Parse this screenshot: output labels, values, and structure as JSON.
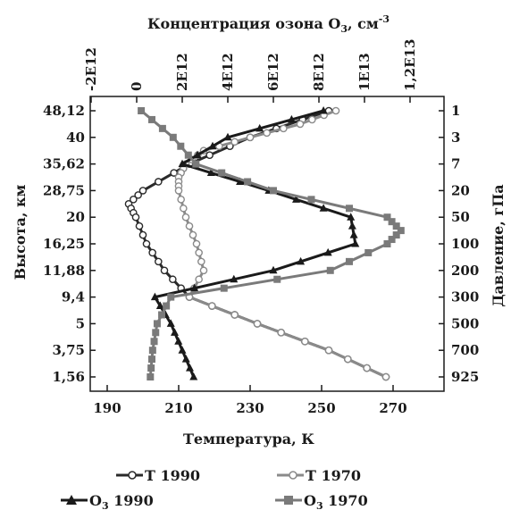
{
  "chart_data": {
    "type": "line",
    "top_axis": {
      "label_main": "Концентрация озона O",
      "label_sub": "3",
      "label_unit": ", см",
      "label_sup": "-3",
      "ticks": [
        "-2E12",
        "0",
        "2E12",
        "4E12",
        "6E12",
        "8E12",
        "1E13",
        "1,2E13"
      ],
      "tick_values": [
        -2000000000000.0,
        0,
        2000000000000.0,
        4000000000000.0,
        6000000000000.0,
        8000000000000.0,
        10000000000000.0,
        12000000000000.0
      ]
    },
    "bottom_axis": {
      "label": "Температура, К",
      "ticks": [
        "190",
        "210",
        "230",
        "250",
        "270"
      ],
      "tick_values": [
        190,
        210,
        230,
        250,
        270
      ]
    },
    "left_axis": {
      "label": "Высота, км",
      "ticks": [
        "48,12",
        "40",
        "35,62",
        "28,75",
        "20",
        "16,25",
        "11,88",
        "9,4",
        "5",
        "3,75",
        "1,56"
      ]
    },
    "right_axis": {
      "label": "Давление, гПа",
      "ticks": [
        "1",
        "3",
        "7",
        "20",
        "50",
        "100",
        "200",
        "300",
        "500",
        "700",
        "925"
      ]
    },
    "series": [
      {
        "name": "T 1990",
        "axis": "temperature",
        "color": "#2a2a2a",
        "marker": "open-circle",
        "levels": [
          0,
          1,
          2,
          3,
          3.5,
          4,
          5,
          6,
          7,
          8,
          9,
          10
        ],
        "values": [
          252,
          230,
          213,
          200,
          196,
          198,
          201,
          206,
          213,
          232,
          252,
          268
        ]
      },
      {
        "name": "T 1970",
        "axis": "temperature",
        "color": "#8a8a8a",
        "marker": "open-circle",
        "levels": [
          0,
          0.5,
          1,
          1.5,
          2,
          2.5,
          3,
          4,
          5,
          6,
          7,
          8,
          9,
          10
        ],
        "values": [
          254,
          244,
          230,
          217,
          212,
          210,
          210,
          212,
          215,
          217,
          213,
          232,
          252,
          268
        ]
      },
      {
        "name": "O3 1990",
        "axis": "ozone",
        "color": "#1a1a1a",
        "marker": "filled-triangle",
        "levels": [
          0,
          1,
          2,
          3,
          4,
          5,
          6,
          7,
          8,
          9,
          10
        ],
        "values": [
          8200000000000.0,
          4000000000000.0,
          2000000000000.0,
          5800000000000.0,
          9400000000000.0,
          9600000000000.0,
          6000000000000.0,
          800000000000.0,
          1500000000000.0,
          2000000000000.0,
          2500000000000.0
        ]
      },
      {
        "name": "O3 1970",
        "axis": "ozone",
        "color": "#7a7a7a",
        "marker": "filled-square",
        "levels": [
          0,
          1,
          2,
          3,
          4,
          4.5,
          5,
          6,
          7,
          8,
          9,
          10
        ],
        "values": [
          200000000000.0,
          1600000000000.0,
          2600000000000.0,
          6000000000000.0,
          11000000000000.0,
          11600000000000.0,
          11000000000000.0,
          8500000000000.0,
          1500000000000.0,
          900000000000.0,
          700000000000.0,
          600000000000.0
        ]
      }
    ],
    "legend_labels": [
      {
        "main": "T 1990",
        "sub": ""
      },
      {
        "main": "T 1970",
        "sub": ""
      },
      {
        "main": "O",
        "sub": "3",
        "rest": " 1990"
      },
      {
        "main": "O",
        "sub": "3",
        "rest": " 1970"
      }
    ],
    "grid": false,
    "legend_position": "bottom"
  }
}
